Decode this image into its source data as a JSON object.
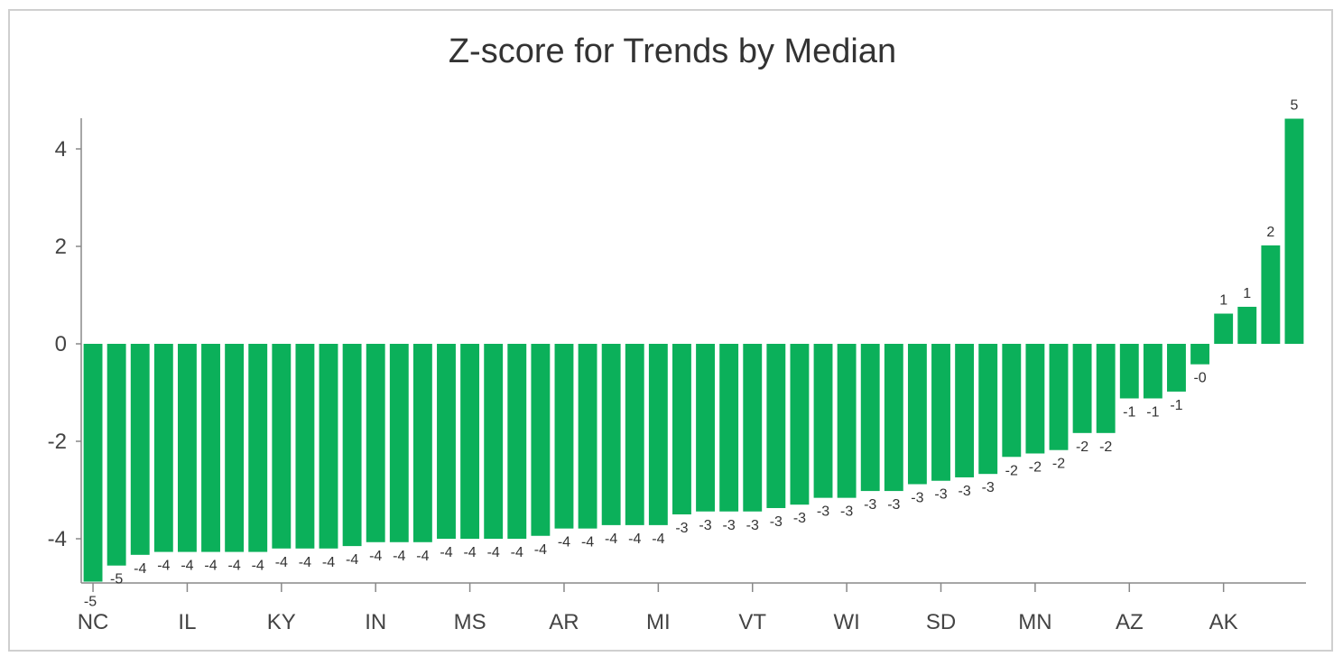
{
  "chart_data": {
    "type": "bar",
    "title": "Z-score for Trends by Median",
    "xlabel": "",
    "ylabel": "",
    "ylim": [
      -4.9,
      4.65
    ],
    "yticks": [
      -4,
      -2,
      0,
      2,
      4
    ],
    "ytick_labels": [
      "-4",
      "-2",
      "0",
      "2",
      "4"
    ],
    "grid": false,
    "bar_color": "#0bb05a",
    "x_tick_labels": [
      {
        "index": 0,
        "label": "NC"
      },
      {
        "index": 4,
        "label": "IL"
      },
      {
        "index": 8,
        "label": "KY"
      },
      {
        "index": 12,
        "label": "IN"
      },
      {
        "index": 16,
        "label": "MS"
      },
      {
        "index": 20,
        "label": "AR"
      },
      {
        "index": 24,
        "label": "MI"
      },
      {
        "index": 28,
        "label": "VT"
      },
      {
        "index": 32,
        "label": "WI"
      },
      {
        "index": 36,
        "label": "SD"
      },
      {
        "index": 40,
        "label": "MN"
      },
      {
        "index": 44,
        "label": "AZ"
      },
      {
        "index": 48,
        "label": "AK"
      }
    ],
    "values": [
      -4.88,
      -4.55,
      -4.33,
      -4.27,
      -4.27,
      -4.27,
      -4.27,
      -4.27,
      -4.2,
      -4.2,
      -4.2,
      -4.15,
      -4.07,
      -4.07,
      -4.07,
      -4.0,
      -4.0,
      -4.0,
      -4.0,
      -3.94,
      -3.79,
      -3.79,
      -3.72,
      -3.72,
      -3.72,
      -3.5,
      -3.44,
      -3.44,
      -3.44,
      -3.37,
      -3.3,
      -3.16,
      -3.16,
      -3.02,
      -3.02,
      -2.88,
      -2.81,
      -2.74,
      -2.67,
      -2.32,
      -2.25,
      -2.18,
      -1.83,
      -1.83,
      -1.12,
      -1.12,
      -0.98,
      -0.42,
      0.62,
      0.76,
      2.02,
      4.62
    ],
    "data_labels": [
      "-5",
      "-5",
      "-4",
      "-4",
      "-4",
      "-4",
      "-4",
      "-4",
      "-4",
      "-4",
      "-4",
      "-4",
      "-4",
      "-4",
      "-4",
      "-4",
      "-4",
      "-4",
      "-4",
      "-4",
      "-4",
      "-4",
      "-4",
      "-4",
      "-4",
      "-3",
      "-3",
      "-3",
      "-3",
      "-3",
      "-3",
      "-3",
      "-3",
      "-3",
      "-3",
      "-3",
      "-3",
      "-3",
      "-3",
      "-2",
      "-2",
      "-2",
      "-2",
      "-2",
      "-1",
      "-1",
      "-1",
      "-0",
      "1",
      "1",
      "2",
      "5"
    ]
  }
}
